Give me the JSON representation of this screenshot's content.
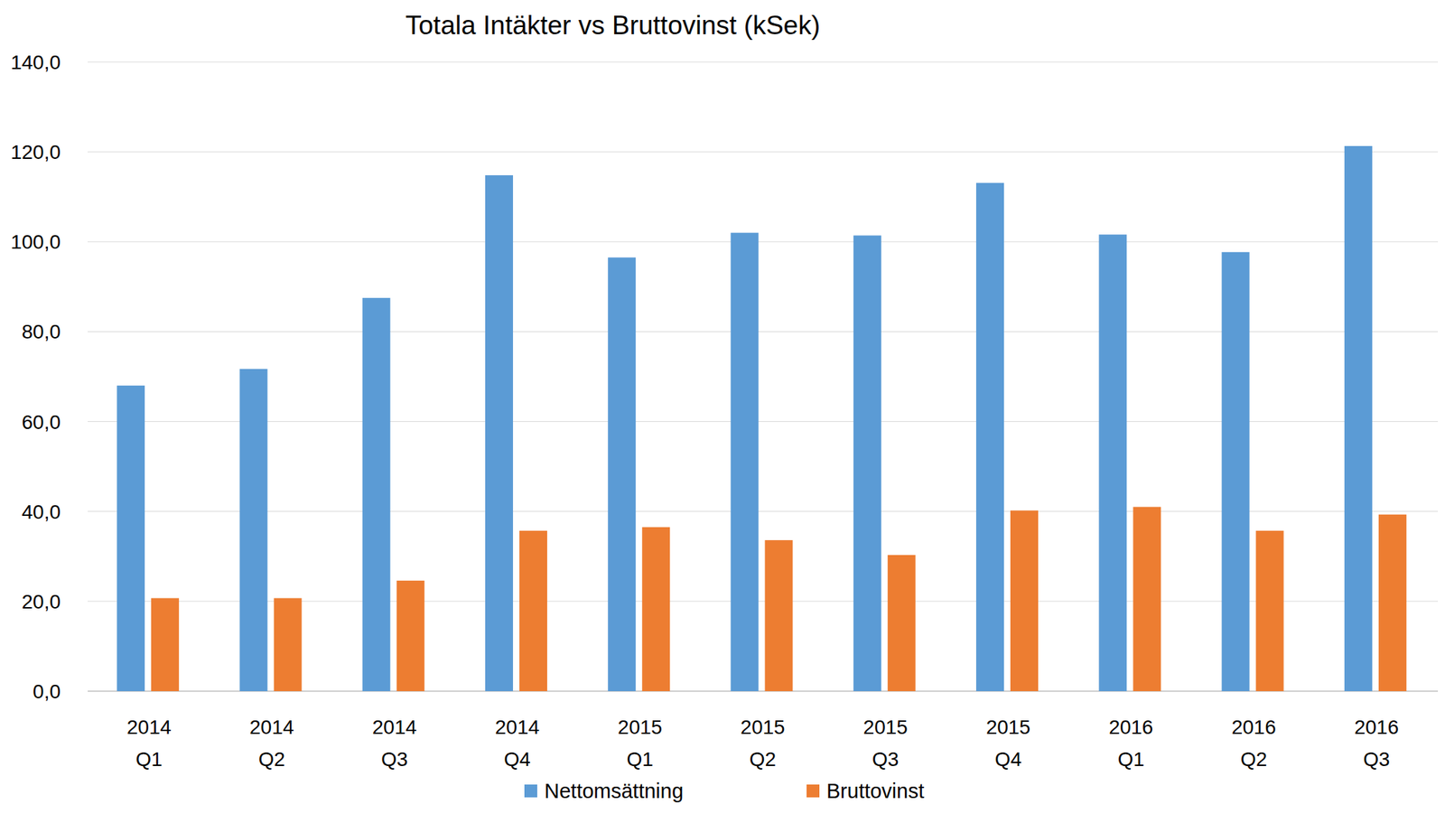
{
  "chart_data": {
    "type": "bar",
    "title": "Totala Intäkter vs Bruttovinst (kSek)",
    "categories": [
      "2014\nQ1",
      "2014\nQ2",
      "2014\nQ3",
      "2014\nQ4",
      "2015\nQ1",
      "2015\nQ2",
      "2015\nQ3",
      "2015\nQ4",
      "2016\nQ1",
      "2016\nQ2",
      "2016\nQ3"
    ],
    "series": [
      {
        "name": "Nettomsättning",
        "color": "#5b9bd5",
        "values": [
          68.0,
          71.7,
          87.5,
          114.8,
          96.5,
          102.0,
          101.4,
          113.1,
          101.6,
          97.7,
          121.3
        ]
      },
      {
        "name": "Bruttovinst",
        "color": "#ed7d31",
        "values": [
          20.7,
          20.7,
          24.6,
          35.7,
          36.5,
          33.6,
          30.3,
          40.2,
          41.0,
          35.7,
          39.3
        ]
      }
    ],
    "ylim": [
      0,
      140
    ],
    "yticks": [
      {
        "value": 0,
        "label": "0,0"
      },
      {
        "value": 20,
        "label": "20,0"
      },
      {
        "value": 40,
        "label": "40,0"
      },
      {
        "value": 60,
        "label": "60,0"
      },
      {
        "value": 80,
        "label": "80,0"
      },
      {
        "value": 100,
        "label": "100,0"
      },
      {
        "value": 120,
        "label": "120,0"
      },
      {
        "value": 140,
        "label": "140,0"
      }
    ],
    "grid": true,
    "legend": "bottom"
  }
}
